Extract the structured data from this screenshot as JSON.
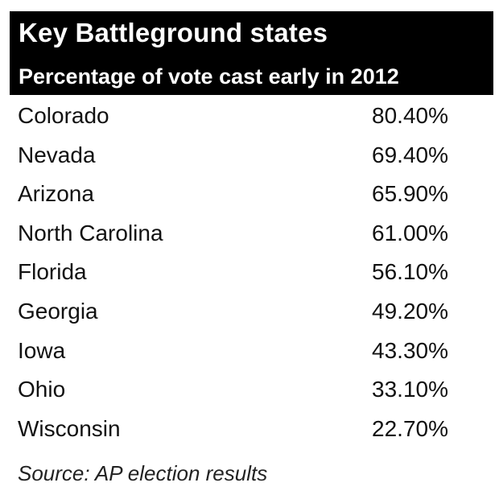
{
  "chart_data": {
    "type": "table",
    "title": "Key Battleground states",
    "subtitle": "Percentage of vote cast early in 2012",
    "rows": [
      {
        "state": "Colorado",
        "value": "80.40%"
      },
      {
        "state": "Nevada",
        "value": "69.40%"
      },
      {
        "state": "Arizona",
        "value": "65.90%"
      },
      {
        "state": "North Carolina",
        "value": "61.00%"
      },
      {
        "state": "Florida",
        "value": "56.10%"
      },
      {
        "state": "Georgia",
        "value": "49.20%"
      },
      {
        "state": "Iowa",
        "value": "43.30%"
      },
      {
        "state": "Ohio",
        "value": "33.10%"
      },
      {
        "state": "Wisconsin",
        "value": "22.70%"
      }
    ],
    "source": "Source: AP election results"
  },
  "colors": {
    "header_bg": "#000000",
    "header_text": "#ffffff",
    "body_text": "#111111"
  }
}
